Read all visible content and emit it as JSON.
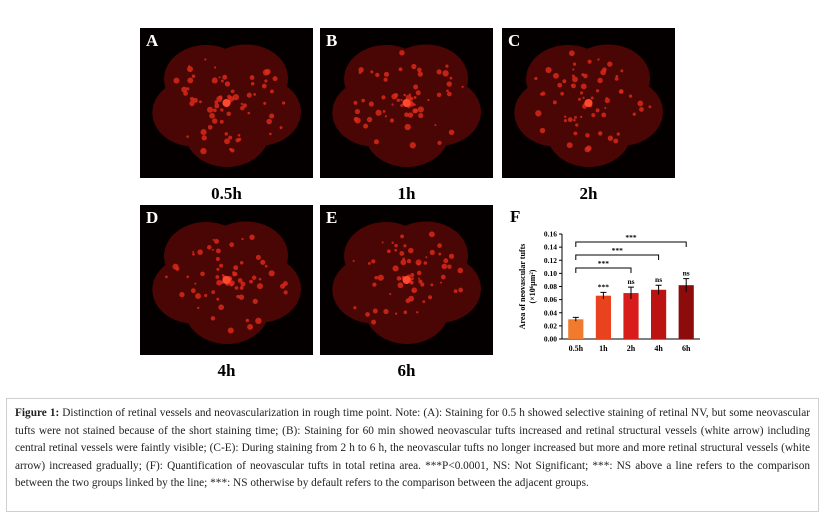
{
  "panels": [
    {
      "letter": "A",
      "label": "0.5h"
    },
    {
      "letter": "B",
      "label": "1h"
    },
    {
      "letter": "C",
      "label": "2h"
    },
    {
      "letter": "D",
      "label": "4h"
    },
    {
      "letter": "E",
      "label": "6h"
    }
  ],
  "chart_data": {
    "type": "bar",
    "panel_letter": "F",
    "y_label_lines": [
      "Area of neovascular tufts",
      "(×10⁶μm²)"
    ],
    "categories": [
      "0.5h",
      "1h",
      "2h",
      "4h",
      "6h"
    ],
    "values": [
      0.03,
      0.066,
      0.07,
      0.075,
      0.082
    ],
    "errors": [
      0.003,
      0.005,
      0.009,
      0.007,
      0.01
    ],
    "colors": [
      "#f07a2e",
      "#e8431e",
      "#d81c1c",
      "#bb1212",
      "#8c0c0c"
    ],
    "value_annotations": [
      "",
      "***",
      "ns",
      "ns",
      "ns"
    ],
    "brackets": [
      {
        "label": "***",
        "from": 0,
        "to": 2
      },
      {
        "label": "***",
        "from": 0,
        "to": 3
      },
      {
        "label": "***",
        "from": 0,
        "to": 4
      }
    ],
    "ylim": [
      0,
      0.16
    ],
    "yticks": [
      {
        "value": 0,
        "label": "0.00"
      },
      {
        "value": 0.02,
        "label": "0.02"
      },
      {
        "value": 0.04,
        "label": "0.04"
      },
      {
        "value": 0.06,
        "label": "0.06"
      },
      {
        "value": 0.08,
        "label": "0.08"
      },
      {
        "value": 0.1,
        "label": "0.10"
      },
      {
        "value": 0.12,
        "label": "0.12"
      },
      {
        "value": 0.14,
        "label": "0.14"
      },
      {
        "value": 0.16,
        "label": "0.16"
      }
    ]
  },
  "caption": {
    "lead": "Figure 1:",
    "text": "Distinction of retinal vessels and neovascularization in rough time point. Note: (A): Staining for 0.5 h showed selective staining of retinal NV, but some neovascular tufts were not stained because of the short staining time; (B): Staining for 60 min showed neovascular tufts increased and retinal structural vessels (white arrow) including central retinal vessels were faintly visible; (C-E): During staining from 2 h to 6 h, the neovascular tufts no longer increased but more and more retinal structural vessels (white arrow) increased gradually; (F): Quantification of neovascular tufts in total retina area. ***P<0.0001, NS: Not Significant; ***: NS above a line refers to the comparison between the two groups linked by the line; ***: NS otherwise by default refers to the comparison between the adjacent groups."
  }
}
